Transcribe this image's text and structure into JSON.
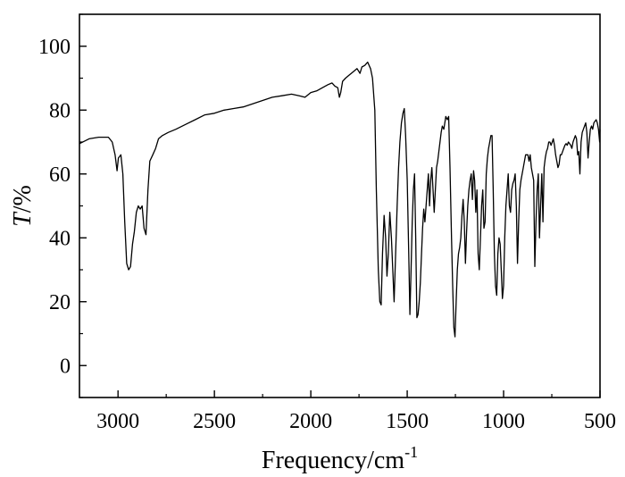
{
  "chart_data": {
    "type": "line",
    "title": "",
    "xlabel": {
      "text": "Frequency/cm",
      "superscript": "-1"
    },
    "ylabel": {
      "italic": "T",
      "rest": "/%"
    },
    "xlim": [
      3200,
      500
    ],
    "ylim": [
      -10,
      110
    ],
    "x_reversed": true,
    "grid": false,
    "legend": "none",
    "x_ticks": [
      3000,
      2500,
      2000,
      1500,
      1000,
      500
    ],
    "x_tick_labels": [
      "3000",
      "2500",
      "2000",
      "1500",
      "1000",
      "500"
    ],
    "y_ticks": [
      0,
      20,
      40,
      60,
      80,
      100
    ],
    "y_tick_labels": [
      "0",
      "20",
      "40",
      "60",
      "80",
      "100"
    ],
    "line_color": "#000000",
    "series": [
      {
        "points": [
          [
            3200,
            69.5
          ],
          [
            3150,
            71
          ],
          [
            3100,
            71.5
          ],
          [
            3050,
            71.5
          ],
          [
            3030,
            70
          ],
          [
            3015,
            66
          ],
          [
            3005,
            61
          ],
          [
            2998,
            65
          ],
          [
            2985,
            66
          ],
          [
            2975,
            60
          ],
          [
            2965,
            45
          ],
          [
            2955,
            32
          ],
          [
            2945,
            30
          ],
          [
            2935,
            31
          ],
          [
            2925,
            38
          ],
          [
            2915,
            42
          ],
          [
            2905,
            48
          ],
          [
            2895,
            50
          ],
          [
            2885,
            49
          ],
          [
            2875,
            50
          ],
          [
            2865,
            43
          ],
          [
            2855,
            41
          ],
          [
            2845,
            55
          ],
          [
            2835,
            64
          ],
          [
            2820,
            66
          ],
          [
            2805,
            68
          ],
          [
            2790,
            71
          ],
          [
            2770,
            72
          ],
          [
            2740,
            73
          ],
          [
            2700,
            74
          ],
          [
            2650,
            75.5
          ],
          [
            2600,
            77
          ],
          [
            2550,
            78.5
          ],
          [
            2500,
            79
          ],
          [
            2450,
            80
          ],
          [
            2400,
            80.5
          ],
          [
            2350,
            81
          ],
          [
            2300,
            82
          ],
          [
            2250,
            83
          ],
          [
            2200,
            84
          ],
          [
            2150,
            84.5
          ],
          [
            2100,
            85
          ],
          [
            2060,
            84.5
          ],
          [
            2030,
            84
          ],
          [
            2000,
            85.5
          ],
          [
            1970,
            86
          ],
          [
            1940,
            87
          ],
          [
            1910,
            88
          ],
          [
            1890,
            88.5
          ],
          [
            1875,
            87.5
          ],
          [
            1860,
            87
          ],
          [
            1852,
            84
          ],
          [
            1845,
            85.5
          ],
          [
            1835,
            89
          ],
          [
            1820,
            90
          ],
          [
            1800,
            91
          ],
          [
            1780,
            92
          ],
          [
            1760,
            93
          ],
          [
            1745,
            91.5
          ],
          [
            1735,
            93.5
          ],
          [
            1720,
            94
          ],
          [
            1705,
            95
          ],
          [
            1690,
            93
          ],
          [
            1680,
            90
          ],
          [
            1668,
            80
          ],
          [
            1660,
            55
          ],
          [
            1650,
            30
          ],
          [
            1642,
            20
          ],
          [
            1635,
            19
          ],
          [
            1628,
            35
          ],
          [
            1620,
            47
          ],
          [
            1612,
            40
          ],
          [
            1605,
            28
          ],
          [
            1598,
            35
          ],
          [
            1590,
            48
          ],
          [
            1582,
            40
          ],
          [
            1575,
            30
          ],
          [
            1568,
            20
          ],
          [
            1560,
            35
          ],
          [
            1552,
            50
          ],
          [
            1545,
            62
          ],
          [
            1538,
            70
          ],
          [
            1530,
            76
          ],
          [
            1522,
            79
          ],
          [
            1515,
            80.5
          ],
          [
            1508,
            72
          ],
          [
            1500,
            58
          ],
          [
            1492,
            35
          ],
          [
            1486,
            16
          ],
          [
            1480,
            30
          ],
          [
            1474,
            45
          ],
          [
            1468,
            55
          ],
          [
            1462,
            60
          ],
          [
            1456,
            40
          ],
          [
            1450,
            15
          ],
          [
            1444,
            16
          ],
          [
            1438,
            20
          ],
          [
            1432,
            26
          ],
          [
            1426,
            35
          ],
          [
            1420,
            43
          ],
          [
            1414,
            49
          ],
          [
            1408,
            45
          ],
          [
            1402,
            50
          ],
          [
            1396,
            55
          ],
          [
            1390,
            60
          ],
          [
            1384,
            50
          ],
          [
            1378,
            58
          ],
          [
            1372,
            62
          ],
          [
            1366,
            55
          ],
          [
            1360,
            48
          ],
          [
            1354,
            55
          ],
          [
            1348,
            62
          ],
          [
            1342,
            64
          ],
          [
            1336,
            67
          ],
          [
            1330,
            70
          ],
          [
            1324,
            73
          ],
          [
            1318,
            75
          ],
          [
            1310,
            74
          ],
          [
            1300,
            78
          ],
          [
            1292,
            77
          ],
          [
            1285,
            78
          ],
          [
            1278,
            62
          ],
          [
            1270,
            40
          ],
          [
            1264,
            25
          ],
          [
            1258,
            12
          ],
          [
            1252,
            9
          ],
          [
            1246,
            20
          ],
          [
            1240,
            30
          ],
          [
            1234,
            35
          ],
          [
            1228,
            37
          ],
          [
            1222,
            40
          ],
          [
            1216,
            47
          ],
          [
            1210,
            52
          ],
          [
            1204,
            45
          ],
          [
            1198,
            32
          ],
          [
            1192,
            42
          ],
          [
            1186,
            50
          ],
          [
            1180,
            55
          ],
          [
            1174,
            58
          ],
          [
            1168,
            60
          ],
          [
            1162,
            52
          ],
          [
            1156,
            61
          ],
          [
            1150,
            58
          ],
          [
            1144,
            48
          ],
          [
            1138,
            55
          ],
          [
            1132,
            35
          ],
          [
            1126,
            30
          ],
          [
            1120,
            40
          ],
          [
            1114,
            50
          ],
          [
            1108,
            55
          ],
          [
            1102,
            43
          ],
          [
            1096,
            45
          ],
          [
            1090,
            60
          ],
          [
            1084,
            65
          ],
          [
            1078,
            68
          ],
          [
            1072,
            70
          ],
          [
            1066,
            72
          ],
          [
            1060,
            72
          ],
          [
            1054,
            55
          ],
          [
            1048,
            35
          ],
          [
            1042,
            25
          ],
          [
            1036,
            22
          ],
          [
            1030,
            35
          ],
          [
            1024,
            40
          ],
          [
            1018,
            38
          ],
          [
            1012,
            30
          ],
          [
            1006,
            21
          ],
          [
            1000,
            25
          ],
          [
            994,
            40
          ],
          [
            988,
            50
          ],
          [
            982,
            55
          ],
          [
            976,
            60
          ],
          [
            970,
            50
          ],
          [
            964,
            48
          ],
          [
            958,
            55
          ],
          [
            952,
            57
          ],
          [
            946,
            58
          ],
          [
            940,
            60
          ],
          [
            934,
            50
          ],
          [
            928,
            32
          ],
          [
            922,
            45
          ],
          [
            916,
            55
          ],
          [
            910,
            58
          ],
          [
            904,
            60
          ],
          [
            898,
            62
          ],
          [
            892,
            64
          ],
          [
            886,
            66
          ],
          [
            880,
            66
          ],
          [
            874,
            66
          ],
          [
            868,
            64
          ],
          [
            862,
            66
          ],
          [
            856,
            62
          ],
          [
            850,
            60
          ],
          [
            844,
            58
          ],
          [
            838,
            31
          ],
          [
            832,
            45
          ],
          [
            826,
            55
          ],
          [
            820,
            60
          ],
          [
            814,
            40
          ],
          [
            808,
            50
          ],
          [
            802,
            60
          ],
          [
            796,
            45
          ],
          [
            790,
            62
          ],
          [
            784,
            65
          ],
          [
            778,
            67
          ],
          [
            772,
            68
          ],
          [
            766,
            70
          ],
          [
            760,
            70
          ],
          [
            754,
            69
          ],
          [
            748,
            70
          ],
          [
            742,
            71
          ],
          [
            736,
            69
          ],
          [
            730,
            66
          ],
          [
            724,
            64
          ],
          [
            718,
            62
          ],
          [
            712,
            63
          ],
          [
            706,
            66
          ],
          [
            700,
            66
          ],
          [
            694,
            67
          ],
          [
            688,
            68
          ],
          [
            682,
            69
          ],
          [
            676,
            69.5
          ],
          [
            670,
            69
          ],
          [
            664,
            70
          ],
          [
            658,
            69.5
          ],
          [
            652,
            69
          ],
          [
            646,
            68
          ],
          [
            640,
            70
          ],
          [
            634,
            71
          ],
          [
            628,
            72
          ],
          [
            622,
            71
          ],
          [
            616,
            66
          ],
          [
            610,
            67
          ],
          [
            604,
            60
          ],
          [
            598,
            70
          ],
          [
            592,
            73
          ],
          [
            586,
            74
          ],
          [
            580,
            75
          ],
          [
            574,
            76
          ],
          [
            568,
            73
          ],
          [
            562,
            65
          ],
          [
            556,
            70
          ],
          [
            550,
            74
          ],
          [
            544,
            75
          ],
          [
            538,
            74
          ],
          [
            532,
            76
          ],
          [
            526,
            76.5
          ],
          [
            520,
            77
          ],
          [
            514,
            76
          ],
          [
            508,
            74
          ],
          [
            502,
            70
          ],
          [
            500,
            74
          ]
        ]
      }
    ]
  }
}
